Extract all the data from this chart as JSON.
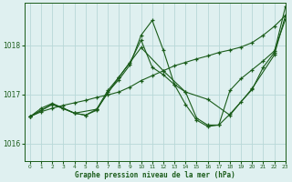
{
  "bg_color": "#dff0f0",
  "grid_color": "#b8d8d8",
  "line_color": "#1a5c1a",
  "title": "Graphe pression niveau de la mer (hPa)",
  "xlim": [
    -0.5,
    23
  ],
  "ylim": [
    1015.65,
    1018.85
  ],
  "yticks": [
    1016,
    1017,
    1018
  ],
  "xticks": [
    0,
    1,
    2,
    3,
    4,
    5,
    6,
    7,
    8,
    9,
    10,
    11,
    12,
    13,
    14,
    15,
    16,
    17,
    18,
    19,
    20,
    21,
    22,
    23
  ],
  "series1_x": [
    0,
    1,
    2,
    3,
    4,
    5,
    6,
    7,
    8,
    9,
    10,
    11,
    12,
    13,
    14,
    15,
    16,
    17,
    18,
    19,
    20,
    21,
    22,
    23
  ],
  "series1_y": [
    1016.55,
    1016.65,
    1016.72,
    1016.78,
    1016.83,
    1016.88,
    1016.94,
    1016.99,
    1017.05,
    1017.15,
    1017.28,
    1017.38,
    1017.48,
    1017.58,
    1017.65,
    1017.72,
    1017.78,
    1017.85,
    1017.9,
    1017.96,
    1018.05,
    1018.2,
    1018.38,
    1018.6
  ],
  "series2_x": [
    0,
    1,
    2,
    3,
    4,
    5,
    6,
    7,
    8,
    9,
    10,
    11,
    12,
    13,
    14,
    15,
    16,
    17,
    18,
    19,
    20,
    21,
    22,
    23
  ],
  "series2_y": [
    1016.55,
    1016.72,
    1016.82,
    1016.72,
    1016.62,
    1016.58,
    1016.68,
    1017.05,
    1017.3,
    1017.6,
    1018.2,
    1018.5,
    1017.9,
    1017.2,
    1016.8,
    1016.48,
    1016.35,
    1016.38,
    1016.6,
    1016.85,
    1017.1,
    1017.55,
    1017.85,
    1018.78
  ],
  "series3_x": [
    0,
    1,
    2,
    3,
    4,
    5,
    6,
    7,
    8,
    9,
    10,
    11,
    12,
    13,
    14,
    15,
    16,
    17,
    18,
    19,
    20,
    21,
    22,
    23
  ],
  "series3_y": [
    1016.55,
    1016.68,
    1016.8,
    1016.72,
    1016.62,
    1016.58,
    1016.7,
    1017.08,
    1017.35,
    1017.65,
    1018.1,
    1017.55,
    1017.4,
    1017.2,
    1017.05,
    1016.52,
    1016.38,
    1016.38,
    1017.08,
    1017.32,
    1017.5,
    1017.68,
    1017.88,
    1018.52
  ],
  "series4_x": [
    0,
    2,
    4,
    6,
    8,
    10,
    12,
    14,
    16,
    18,
    20,
    22,
    23
  ],
  "series4_y": [
    1016.55,
    1016.8,
    1016.62,
    1016.7,
    1017.35,
    1017.95,
    1017.48,
    1017.05,
    1016.9,
    1016.58,
    1017.12,
    1017.8,
    1018.6
  ]
}
